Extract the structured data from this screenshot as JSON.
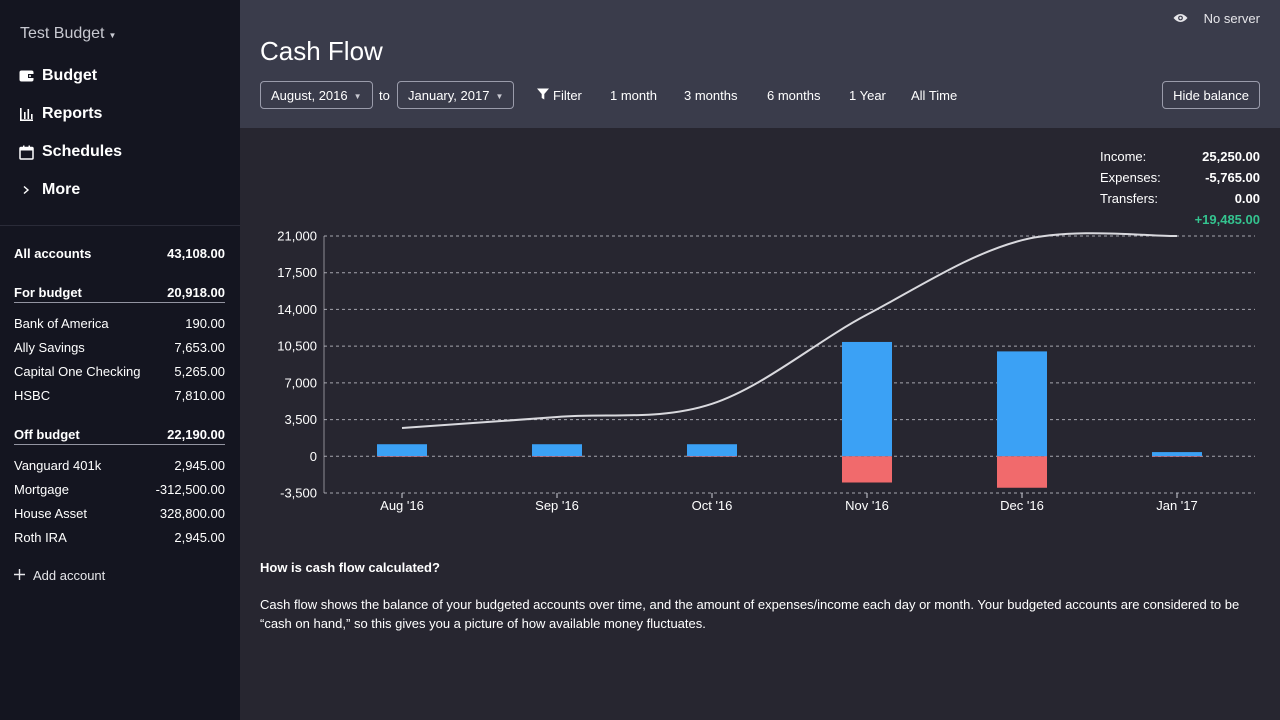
{
  "sidebar": {
    "budget_name": "Test Budget",
    "nav": [
      {
        "label": "Budget",
        "icon": "wallet-icon"
      },
      {
        "label": "Reports",
        "icon": "bar-chart-icon"
      },
      {
        "label": "Schedules",
        "icon": "calendar-icon"
      },
      {
        "label": "More",
        "icon": "chevron-right-icon"
      }
    ],
    "all_accounts": {
      "label": "All accounts",
      "value": "43,108.00"
    },
    "for_budget": {
      "label": "For budget",
      "value": "20,918.00",
      "accounts": [
        {
          "name": "Bank of America",
          "value": "190.00"
        },
        {
          "name": "Ally Savings",
          "value": "7,653.00"
        },
        {
          "name": "Capital One Checking",
          "value": "5,265.00"
        },
        {
          "name": "HSBC",
          "value": "7,810.00"
        }
      ]
    },
    "off_budget": {
      "label": "Off budget",
      "value": "22,190.00",
      "accounts": [
        {
          "name": "Vanguard 401k",
          "value": "2,945.00"
        },
        {
          "name": "Mortgage",
          "value": "-312,500.00"
        },
        {
          "name": "House Asset",
          "value": "328,800.00"
        },
        {
          "name": "Roth IRA",
          "value": "2,945.00"
        }
      ]
    },
    "add_account": "Add account"
  },
  "header": {
    "server_status": "No server",
    "title": "Cash Flow",
    "start_month": "August, 2016",
    "to_label": "to",
    "end_month": "January, 2017",
    "filter_label": "Filter",
    "ranges": [
      "1 month",
      "3 months",
      "6 months",
      "1 Year",
      "All Time"
    ],
    "hide_balance": "Hide balance"
  },
  "summary": {
    "income_label": "Income:",
    "income": "25,250.00",
    "expenses_label": "Expenses:",
    "expenses": "-5,765.00",
    "transfers_label": "Transfers:",
    "transfers": "0.00",
    "net": "+19,485.00"
  },
  "colors": {
    "income": "#3ba1f5",
    "expenses": "#f16a6c",
    "balance": "#d9d9de",
    "positive": "#34c38f"
  },
  "chart_data": {
    "type": "bar",
    "categories": [
      "Aug '16",
      "Sep '16",
      "Oct '16",
      "Nov '16",
      "Dec '16",
      "Jan '17"
    ],
    "series": [
      {
        "kind": "bar",
        "values": [
          1150,
          1150,
          1150,
          10900,
          10000,
          400
        ]
      },
      {
        "kind": "bar",
        "values": [
          -50,
          -50,
          -50,
          -2500,
          -3000,
          -50
        ]
      },
      {
        "kind": "line",
        "values": [
          2700,
          3750,
          5000,
          13500,
          20600,
          21000
        ]
      }
    ],
    "yticks": [
      21000,
      17500,
      14000,
      10500,
      7000,
      3500,
      0,
      -3500
    ],
    "ytick_labels": [
      "21,000",
      "17,500",
      "14,000",
      "10,500",
      "7,000",
      "3,500",
      "0",
      "-3,500"
    ],
    "ylim": [
      -3500,
      21000
    ],
    "grid": true
  },
  "explanation": {
    "title": "How is cash flow calculated?",
    "text": "Cash flow shows the balance of your budgeted accounts over time, and the amount of expenses/income each day or month. Your budgeted accounts are considered to be “cash on hand,” so this gives you a picture of how available money fluctuates."
  }
}
